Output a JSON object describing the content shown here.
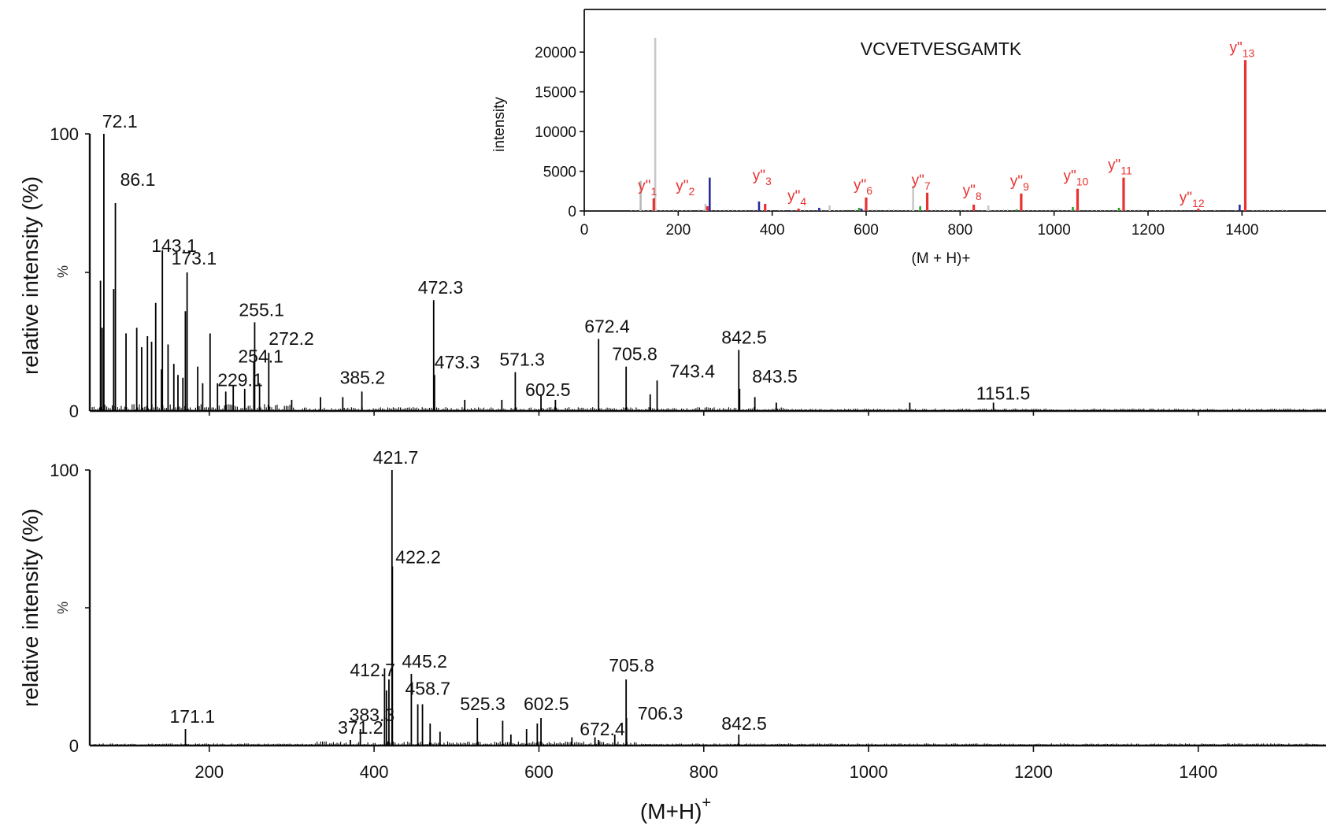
{
  "chart_data": [
    {
      "type": "bar",
      "panel": "top",
      "ylabel": "relative intensity (%)",
      "ylim": [
        0,
        100
      ],
      "yticks": [
        "0",
        "100"
      ],
      "ymid_label": "%",
      "xlim": [
        55,
        1555
      ],
      "peaks": [
        {
          "x": 72.1,
          "y": 100,
          "label": "72.1"
        },
        {
          "x": 86.1,
          "y": 75,
          "label": "86.1"
        },
        {
          "x": 143.1,
          "y": 58,
          "label": "143.1"
        },
        {
          "x": 173.1,
          "y": 50,
          "label": "173.1"
        },
        {
          "x": 255.1,
          "y": 32,
          "label": "255.1"
        },
        {
          "x": 272.2,
          "y": 21,
          "label": "272.2"
        },
        {
          "x": 254.1,
          "y": 18,
          "label": "254.1"
        },
        {
          "x": 229.1,
          "y": 9,
          "label": "229.1"
        },
        {
          "x": 385.2,
          "y": 7,
          "label": "385.2"
        },
        {
          "x": 472.3,
          "y": 40,
          "label": "472.3"
        },
        {
          "x": 473.3,
          "y": 13,
          "label": "473.3"
        },
        {
          "x": 571.3,
          "y": 14,
          "label": "571.3"
        },
        {
          "x": 602.5,
          "y": 6,
          "label": "602.5"
        },
        {
          "x": 672.4,
          "y": 26,
          "label": "672.4"
        },
        {
          "x": 705.8,
          "y": 16,
          "label": "705.8"
        },
        {
          "x": 743.4,
          "y": 11,
          "label": "743.4"
        },
        {
          "x": 842.5,
          "y": 22,
          "label": "842.5"
        },
        {
          "x": 843.5,
          "y": 8,
          "label": "843.5"
        },
        {
          "x": 1151.5,
          "y": 3,
          "label": "1151.5"
        }
      ],
      "minor_peaks": [
        {
          "x": 68,
          "y": 47
        },
        {
          "x": 70,
          "y": 30
        },
        {
          "x": 84,
          "y": 44
        },
        {
          "x": 99,
          "y": 28
        },
        {
          "x": 112,
          "y": 30
        },
        {
          "x": 118,
          "y": 23
        },
        {
          "x": 125,
          "y": 27
        },
        {
          "x": 130,
          "y": 25
        },
        {
          "x": 135,
          "y": 39
        },
        {
          "x": 142,
          "y": 15
        },
        {
          "x": 150,
          "y": 24
        },
        {
          "x": 157,
          "y": 17
        },
        {
          "x": 162,
          "y": 13
        },
        {
          "x": 168,
          "y": 12
        },
        {
          "x": 171,
          "y": 36
        },
        {
          "x": 186,
          "y": 16
        },
        {
          "x": 192,
          "y": 10
        },
        {
          "x": 201,
          "y": 28
        },
        {
          "x": 210,
          "y": 10
        },
        {
          "x": 220,
          "y": 7
        },
        {
          "x": 243,
          "y": 8
        },
        {
          "x": 261,
          "y": 10
        },
        {
          "x": 300,
          "y": 4
        },
        {
          "x": 335,
          "y": 5
        },
        {
          "x": 362,
          "y": 5
        },
        {
          "x": 510,
          "y": 4
        },
        {
          "x": 555,
          "y": 4
        },
        {
          "x": 620,
          "y": 4
        },
        {
          "x": 735,
          "y": 6
        },
        {
          "x": 862,
          "y": 5
        },
        {
          "x": 888,
          "y": 3
        },
        {
          "x": 1050,
          "y": 3
        }
      ]
    },
    {
      "type": "bar",
      "panel": "bottom",
      "xlabel": "(M+H)",
      "xlabel_sup": "+",
      "ylabel": "relative intensity (%)",
      "ylim": [
        0,
        100
      ],
      "yticks": [
        "0",
        "100"
      ],
      "ymid_label": "%",
      "xlim": [
        55,
        1555
      ],
      "xticks": [
        200,
        400,
        600,
        800,
        1000,
        1200,
        1400
      ],
      "peaks": [
        {
          "x": 171.1,
          "y": 6,
          "label": "171.1"
        },
        {
          "x": 371.2,
          "y": 2,
          "label": "371.2"
        },
        {
          "x": 383.3,
          "y": 6,
          "label": "383.3"
        },
        {
          "x": 412.7,
          "y": 28,
          "label": "412.7"
        },
        {
          "x": 421.7,
          "y": 100,
          "label": "421.7"
        },
        {
          "x": 422.2,
          "y": 65,
          "label": "422.2"
        },
        {
          "x": 445.2,
          "y": 26,
          "label": "445.2"
        },
        {
          "x": 458.7,
          "y": 15,
          "label": "458.7"
        },
        {
          "x": 525.3,
          "y": 10,
          "label": "525.3"
        },
        {
          "x": 602.5,
          "y": 10,
          "label": "602.5"
        },
        {
          "x": 672.4,
          "y": 2,
          "label": "672.4"
        },
        {
          "x": 705.8,
          "y": 24,
          "label": "705.8"
        },
        {
          "x": 706.3,
          "y": 10,
          "label": "706.3"
        },
        {
          "x": 842.5,
          "y": 4,
          "label": "842.5"
        }
      ],
      "minor_peaks": [
        {
          "x": 415,
          "y": 20
        },
        {
          "x": 418,
          "y": 24
        },
        {
          "x": 453,
          "y": 15
        },
        {
          "x": 468,
          "y": 8
        },
        {
          "x": 480,
          "y": 5
        },
        {
          "x": 556,
          "y": 9
        },
        {
          "x": 566,
          "y": 4
        },
        {
          "x": 585,
          "y": 6
        },
        {
          "x": 598,
          "y": 8
        },
        {
          "x": 640,
          "y": 3
        },
        {
          "x": 668,
          "y": 3
        },
        {
          "x": 692,
          "y": 4
        }
      ]
    },
    {
      "type": "bar",
      "panel": "inset",
      "title": "VCVETVESGAMTK",
      "xlabel": "(M + H)+",
      "ylabel": "intensity",
      "xlim": [
        0,
        1500
      ],
      "ylim": [
        0,
        22000
      ],
      "xticks": [
        0,
        200,
        400,
        600,
        800,
        1000,
        1200,
        1400
      ],
      "yticks": [
        0,
        5000,
        10000,
        15000,
        20000
      ],
      "ion_peaks": [
        {
          "x": 148,
          "y": 1600,
          "label": "y\"1"
        },
        {
          "x": 262,
          "y": 600,
          "label": "y\"2"
        },
        {
          "x": 385,
          "y": 900,
          "label": "y\"3"
        },
        {
          "x": 456,
          "y": 300,
          "label": "y\"4"
        },
        {
          "x": 600,
          "y": 1700,
          "label": "y\"6"
        },
        {
          "x": 730,
          "y": 2300,
          "label": "y\"7"
        },
        {
          "x": 829,
          "y": 800,
          "label": "y\"8"
        },
        {
          "x": 930,
          "y": 2200,
          "label": "y\"9"
        },
        {
          "x": 1050,
          "y": 2800,
          "label": "y\"10"
        },
        {
          "x": 1148,
          "y": 4200,
          "label": "y\"11"
        },
        {
          "x": 1307,
          "y": 300,
          "label": "y\"12"
        },
        {
          "x": 1407,
          "y": 19000,
          "label": "y\"13"
        }
      ],
      "other_peaks": [
        {
          "x": 120,
          "y": 3800,
          "color": "#b8b8b8"
        },
        {
          "x": 151,
          "y": 21800,
          "color": "#c8c8c8"
        },
        {
          "x": 258,
          "y": 900,
          "color": "#c8c8c8"
        },
        {
          "x": 267,
          "y": 4200,
          "color": "#2b2b9a"
        },
        {
          "x": 372,
          "y": 1200,
          "color": "#2b2b9a"
        },
        {
          "x": 500,
          "y": 400,
          "color": "#2b2b9a"
        },
        {
          "x": 522,
          "y": 700,
          "color": "#c8c8c8"
        },
        {
          "x": 585,
          "y": 400,
          "color": "#2aa02a"
        },
        {
          "x": 590,
          "y": 300,
          "color": "#2b2b9a"
        },
        {
          "x": 700,
          "y": 3200,
          "color": "#c8c8c8"
        },
        {
          "x": 715,
          "y": 600,
          "color": "#2aa02a"
        },
        {
          "x": 860,
          "y": 700,
          "color": "#c8c8c8"
        },
        {
          "x": 920,
          "y": 200,
          "color": "#2aa02a"
        },
        {
          "x": 1040,
          "y": 500,
          "color": "#2aa02a"
        },
        {
          "x": 1138,
          "y": 400,
          "color": "#2aa02a"
        },
        {
          "x": 1395,
          "y": 800,
          "color": "#2b2b9a"
        }
      ]
    }
  ],
  "colors": {
    "ion": "#e83232",
    "ion_text": "#e83232",
    "axis": "#111111"
  }
}
